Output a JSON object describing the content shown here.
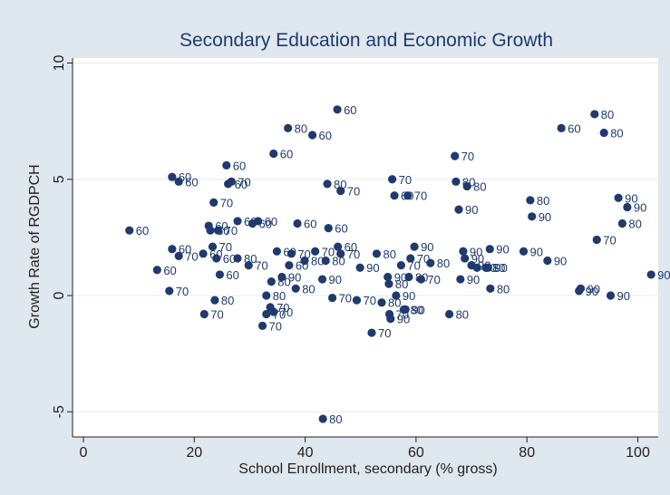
{
  "chart_data": {
    "type": "scatter",
    "title": "Secondary Education and Economic Growth",
    "xlabel": "School Enrollment, secondary (% gross)",
    "ylabel": "Growth Rate of RGDPCH",
    "xlim": [
      0,
      100
    ],
    "ylim": [
      -5,
      10
    ],
    "xticks": [
      0,
      20,
      40,
      60,
      80,
      100
    ],
    "yticks": [
      -5,
      0,
      5,
      10
    ],
    "grid": "horizontal",
    "colors": {
      "background": "#dfe7ef",
      "plot_background": "#ffffff",
      "marker": "#1f3a6e",
      "grid": "#e6ecf2"
    },
    "points": [
      {
        "x": 8.3,
        "y": 2.8,
        "label": "60"
      },
      {
        "x": 13.3,
        "y": 1.1,
        "label": "60"
      },
      {
        "x": 15.5,
        "y": 0.2,
        "label": "70"
      },
      {
        "x": 16.0,
        "y": 5.1,
        "label": "60"
      },
      {
        "x": 16.0,
        "y": 2.0,
        "label": "60"
      },
      {
        "x": 17.2,
        "y": 4.9,
        "label": "60"
      },
      {
        "x": 17.2,
        "y": 1.7,
        "label": "70"
      },
      {
        "x": 21.6,
        "y": 1.8,
        "label": "60"
      },
      {
        "x": 21.8,
        "y": -0.8,
        "label": "70"
      },
      {
        "x": 22.6,
        "y": 3.0,
        "label": "60"
      },
      {
        "x": 22.9,
        "y": 2.8,
        "label": "60"
      },
      {
        "x": 23.3,
        "y": 2.1,
        "label": "70"
      },
      {
        "x": 23.5,
        "y": 4.0,
        "label": "70"
      },
      {
        "x": 23.7,
        "y": -0.2,
        "label": "80"
      },
      {
        "x": 24.0,
        "y": 1.6,
        "label": "60"
      },
      {
        "x": 24.3,
        "y": 2.8,
        "label": "70"
      },
      {
        "x": 24.6,
        "y": 0.9,
        "label": "60"
      },
      {
        "x": 25.8,
        "y": 5.6,
        "label": "60"
      },
      {
        "x": 26.1,
        "y": 4.8,
        "label": "60"
      },
      {
        "x": 26.7,
        "y": 4.9,
        "label": "70"
      },
      {
        "x": 27.8,
        "y": 3.2,
        "label": "60"
      },
      {
        "x": 27.8,
        "y": 1.6,
        "label": "80"
      },
      {
        "x": 29.8,
        "y": 1.3,
        "label": "70"
      },
      {
        "x": 30.5,
        "y": 3.1,
        "label": "60"
      },
      {
        "x": 31.5,
        "y": 3.2,
        "label": "60"
      },
      {
        "x": 32.3,
        "y": -1.3,
        "label": "70"
      },
      {
        "x": 33.0,
        "y": -0.8,
        "label": "70"
      },
      {
        "x": 33.0,
        "y": 0.0,
        "label": "80"
      },
      {
        "x": 33.7,
        "y": -0.5,
        "label": "70"
      },
      {
        "x": 33.9,
        "y": 0.6,
        "label": "80"
      },
      {
        "x": 34.3,
        "y": 6.1,
        "label": "60"
      },
      {
        "x": 34.3,
        "y": -0.7,
        "label": "70"
      },
      {
        "x": 34.9,
        "y": 1.9,
        "label": "60"
      },
      {
        "x": 35.8,
        "y": 0.8,
        "label": "90"
      },
      {
        "x": 36.9,
        "y": 7.2,
        "label": "80"
      },
      {
        "x": 37.1,
        "y": 1.3,
        "label": "60"
      },
      {
        "x": 37.5,
        "y": 1.8,
        "label": "70"
      },
      {
        "x": 38.3,
        "y": 0.3,
        "label": "80"
      },
      {
        "x": 38.6,
        "y": 3.1,
        "label": "60"
      },
      {
        "x": 39.9,
        "y": 1.5,
        "label": "80"
      },
      {
        "x": 41.3,
        "y": 6.9,
        "label": "60"
      },
      {
        "x": 41.8,
        "y": 1.9,
        "label": "70"
      },
      {
        "x": 43.1,
        "y": 0.7,
        "label": "90"
      },
      {
        "x": 43.2,
        "y": -5.3,
        "label": "80"
      },
      {
        "x": 43.7,
        "y": 1.5,
        "label": "80"
      },
      {
        "x": 44.0,
        "y": 4.8,
        "label": "80"
      },
      {
        "x": 44.2,
        "y": 2.9,
        "label": "60"
      },
      {
        "x": 44.9,
        "y": -0.1,
        "label": "70"
      },
      {
        "x": 45.8,
        "y": 8.0,
        "label": "60"
      },
      {
        "x": 45.9,
        "y": 2.1,
        "label": "60"
      },
      {
        "x": 46.4,
        "y": 4.5,
        "label": "70"
      },
      {
        "x": 46.4,
        "y": 1.8,
        "label": "70"
      },
      {
        "x": 49.3,
        "y": -0.2,
        "label": "70"
      },
      {
        "x": 49.9,
        "y": 1.2,
        "label": "90"
      },
      {
        "x": 52.0,
        "y": -1.6,
        "label": "70"
      },
      {
        "x": 52.9,
        "y": 1.8,
        "label": "80"
      },
      {
        "x": 53.8,
        "y": -0.3,
        "label": "80"
      },
      {
        "x": 54.9,
        "y": 0.8,
        "label": "90"
      },
      {
        "x": 55.1,
        "y": 0.5,
        "label": "80"
      },
      {
        "x": 55.2,
        "y": -0.8,
        "label": "70"
      },
      {
        "x": 55.4,
        "y": -1.0,
        "label": "90"
      },
      {
        "x": 55.7,
        "y": 5.0,
        "label": "70"
      },
      {
        "x": 56.1,
        "y": 4.3,
        "label": "60"
      },
      {
        "x": 56.4,
        "y": 0.0,
        "label": "90"
      },
      {
        "x": 57.3,
        "y": 1.3,
        "label": "70"
      },
      {
        "x": 57.8,
        "y": -0.6,
        "label": "80"
      },
      {
        "x": 58.1,
        "y": -0.6,
        "label": "90"
      },
      {
        "x": 58.5,
        "y": 4.3,
        "label": "70"
      },
      {
        "x": 58.7,
        "y": 0.8,
        "label": "80"
      },
      {
        "x": 59.0,
        "y": 1.6,
        "label": "70"
      },
      {
        "x": 59.7,
        "y": 2.1,
        "label": "90"
      },
      {
        "x": 60.9,
        "y": 0.7,
        "label": "70"
      },
      {
        "x": 62.6,
        "y": 1.4,
        "label": "80"
      },
      {
        "x": 66.0,
        "y": -0.8,
        "label": "80"
      },
      {
        "x": 67.0,
        "y": 6.0,
        "label": "70"
      },
      {
        "x": 67.2,
        "y": 4.9,
        "label": "80"
      },
      {
        "x": 67.7,
        "y": 3.7,
        "label": "90"
      },
      {
        "x": 68.0,
        "y": 0.7,
        "label": "90"
      },
      {
        "x": 68.5,
        "y": 1.9,
        "label": "90"
      },
      {
        "x": 68.8,
        "y": 1.6,
        "label": "90"
      },
      {
        "x": 69.2,
        "y": 4.7,
        "label": "80"
      },
      {
        "x": 70.0,
        "y": 1.3,
        "label": "90"
      },
      {
        "x": 71.0,
        "y": 1.2,
        "label": "90"
      },
      {
        "x": 72.6,
        "y": 1.2,
        "label": "80"
      },
      {
        "x": 73.0,
        "y": 1.2,
        "label": "90"
      },
      {
        "x": 73.3,
        "y": 2.0,
        "label": "90"
      },
      {
        "x": 73.4,
        "y": 0.3,
        "label": "80"
      },
      {
        "x": 79.4,
        "y": 1.9,
        "label": "90"
      },
      {
        "x": 80.6,
        "y": 4.1,
        "label": "80"
      },
      {
        "x": 80.9,
        "y": 3.4,
        "label": "90"
      },
      {
        "x": 83.7,
        "y": 1.5,
        "label": "90"
      },
      {
        "x": 86.2,
        "y": 7.2,
        "label": "60"
      },
      {
        "x": 89.4,
        "y": 0.2,
        "label": "90"
      },
      {
        "x": 89.7,
        "y": 0.3,
        "label": "90"
      },
      {
        "x": 92.2,
        "y": 7.8,
        "label": "80"
      },
      {
        "x": 92.6,
        "y": 2.4,
        "label": "70"
      },
      {
        "x": 93.9,
        "y": 7.0,
        "label": "80"
      },
      {
        "x": 95.1,
        "y": 0.0,
        "label": "90"
      },
      {
        "x": 96.5,
        "y": 4.2,
        "label": "90"
      },
      {
        "x": 97.2,
        "y": 3.1,
        "label": "80"
      },
      {
        "x": 98.1,
        "y": 3.8,
        "label": "90"
      },
      {
        "x": 102.4,
        "y": 0.9,
        "label": "90"
      }
    ]
  }
}
